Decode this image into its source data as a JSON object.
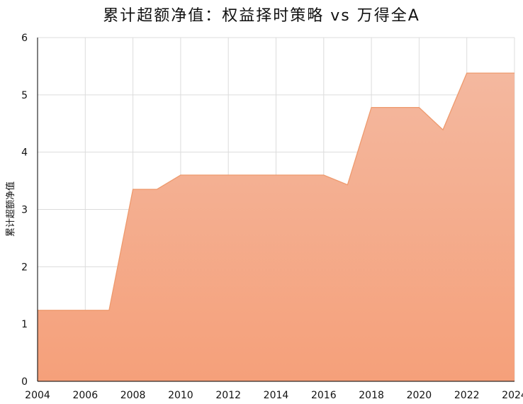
{
  "chart_data": {
    "type": "area",
    "title": "累计超额净值：权益择时策略 vs 万得全A",
    "xlabel": "",
    "ylabel": "累计超额净值",
    "xlim": [
      2004,
      2024
    ],
    "ylim": [
      0,
      6
    ],
    "x_ticks": [
      "2004",
      "2006",
      "2008",
      "2010",
      "2012",
      "2014",
      "2016",
      "2018",
      "2020",
      "2022",
      "2024"
    ],
    "y_ticks": [
      "0",
      "1",
      "2",
      "3",
      "4",
      "5",
      "6"
    ],
    "grid": true,
    "series": [
      {
        "x": [
          2004,
          2005,
          2006,
          2007,
          2008,
          2009,
          2010,
          2011,
          2012,
          2013,
          2014,
          2015,
          2016,
          2017,
          2018,
          2019,
          2020,
          2021,
          2022,
          2023,
          2024
        ],
        "values": [
          1.24,
          1.24,
          1.24,
          1.24,
          3.35,
          3.35,
          3.6,
          3.6,
          3.6,
          3.6,
          3.6,
          3.6,
          3.6,
          3.43,
          4.78,
          4.78,
          4.78,
          4.39,
          5.38,
          5.38,
          5.38
        ],
        "colors": {
          "fill_top": "#f4b89f",
          "fill_bottom": "#f5a07a",
          "line": "#ee9a6e"
        }
      }
    ],
    "colors": {
      "grid": "#dcdcdc",
      "axis": "#000000"
    }
  }
}
